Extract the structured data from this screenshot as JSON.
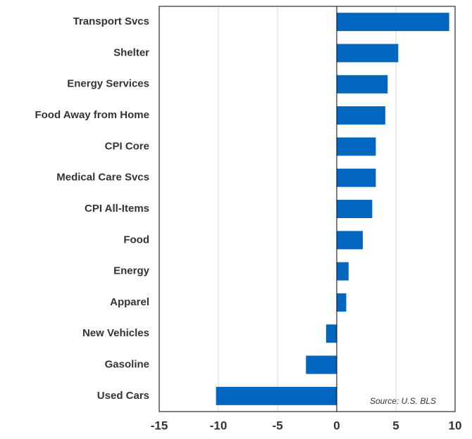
{
  "chart_data": {
    "type": "bar",
    "orientation": "horizontal",
    "categories": [
      "Transport Svcs",
      "Shelter",
      "Energy Services",
      "Food Away from Home",
      "CPI Core",
      "Medical Care Svcs",
      "CPI All-Items",
      "Food",
      "Energy",
      "Apparel",
      "New Vehicles",
      "Gasoline",
      "Used Cars"
    ],
    "values": [
      9.5,
      5.2,
      4.3,
      4.1,
      3.3,
      3.3,
      3.0,
      2.2,
      1.0,
      0.8,
      -0.9,
      -2.6,
      -10.2
    ],
    "color": "#0066c0",
    "xlim": [
      -15,
      10
    ],
    "xticks": [
      -15,
      -10,
      -5,
      0,
      5,
      10
    ],
    "grid": true,
    "annotation": "Source: U.S. BLS"
  }
}
